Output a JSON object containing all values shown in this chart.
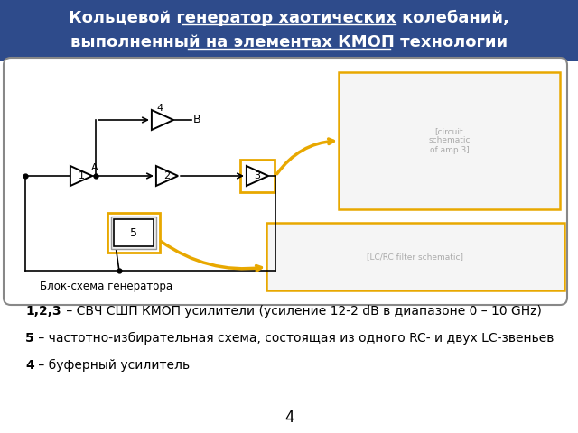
{
  "title_line1": "Кольцевой генератор хаотических колебаний,",
  "title_line2": "выполненный на элементах КМОП технологии",
  "title_fontsize": 13,
  "title_bg": "#2E4B8B",
  "slide_bg": "#FFFFFF",
  "text_lines": [
    {
      "text": "1,2,3",
      "bold": true,
      "rest": " – СВЧ СШП КМОП усилители (усиление 12-2 dB в диапазоне 0 – 10 GHz)"
    },
    {
      "text": "5",
      "bold": true,
      "rest": " – частотно-избирательная схема, состоящая из одного RC- и двух LC-звеньев"
    },
    {
      "text": "4",
      "bold": false,
      "rest": " – буферный усилитель"
    }
  ],
  "page_number": "4",
  "diagram_caption": "Блок-схема генератора",
  "highlight_color": "#E8A800",
  "wire_color": "#000000",
  "title_text_color": "#FFFFFF",
  "border_color": "#888888"
}
